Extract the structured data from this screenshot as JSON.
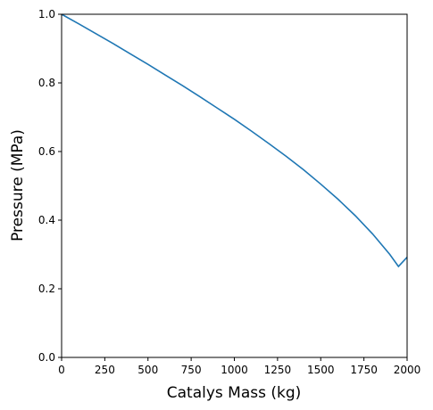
{
  "chart_data": {
    "type": "line",
    "title": "",
    "xlabel": "Catalys Mass (kg)",
    "ylabel": "Pressure (MPa)",
    "xlim": [
      0,
      2000
    ],
    "ylim": [
      0.0,
      1.0
    ],
    "xticks": [
      "0",
      "250",
      "500",
      "750",
      "1000",
      "1250",
      "1500",
      "1750",
      "2000"
    ],
    "yticks": [
      "0.0",
      "0.2",
      "0.4",
      "0.6",
      "0.8",
      "1.0"
    ],
    "grid": false,
    "legend": "none",
    "line_color": "#1f77b4",
    "series": [
      {
        "x": [
          0,
          100,
          200,
          300,
          400,
          500,
          600,
          700,
          800,
          900,
          1000,
          1100,
          1200,
          1300,
          1400,
          1500,
          1600,
          1700,
          1800,
          1900,
          1950,
          2000
        ],
        "values": [
          1.0,
          0.972,
          0.943,
          0.914,
          0.884,
          0.854,
          0.823,
          0.792,
          0.76,
          0.727,
          0.694,
          0.659,
          0.623,
          0.586,
          0.547,
          0.505,
          0.461,
          0.413,
          0.36,
          0.3,
          0.265,
          0.292
        ]
      }
    ]
  }
}
